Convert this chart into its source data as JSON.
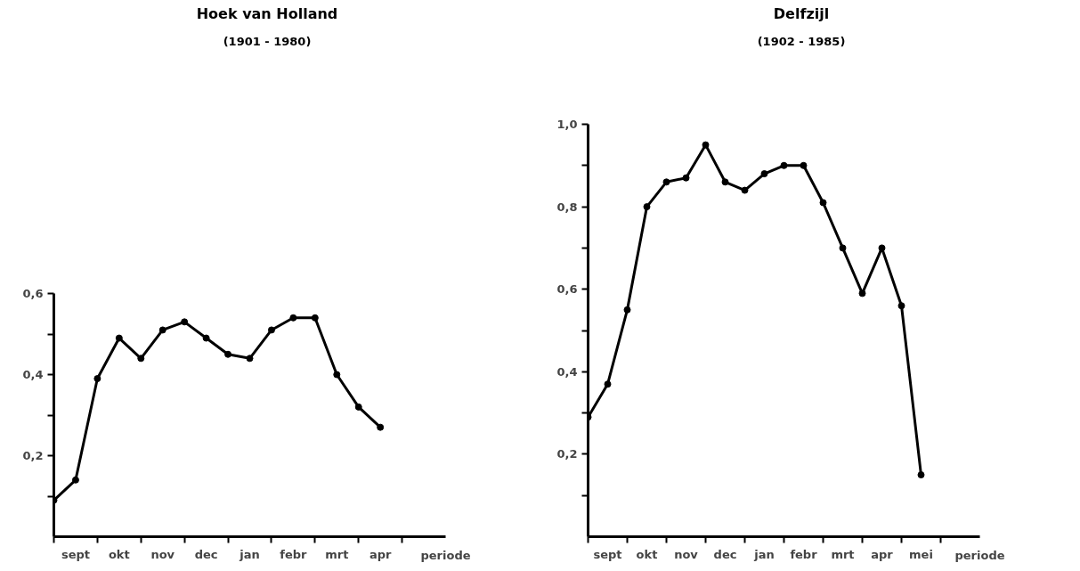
{
  "chart_data": [
    {
      "type": "line",
      "title": "Hoek van Holland",
      "subtitle": "(1901 - 1980)",
      "xlabel": "periode",
      "categories": [
        null,
        "sept",
        null,
        "okt",
        null,
        "nov",
        null,
        "dec",
        null,
        "jan",
        null,
        "febr",
        null,
        "mrt",
        null,
        "apr",
        null,
        null,
        null
      ],
      "series": [
        {
          "color": "#000000",
          "values": [
            0.09,
            0.14,
            0.39,
            0.49,
            0.44,
            0.51,
            0.53,
            0.49,
            0.45,
            0.44,
            0.51,
            0.54,
            0.54,
            0.4,
            0.32,
            0.27,
            null,
            null,
            null
          ]
        }
      ],
      "ylim": [
        0,
        0.6
      ],
      "yticks": [
        {
          "value": 0.1,
          "label": null
        },
        {
          "value": 0.2,
          "label": "0,2"
        },
        {
          "value": 0.3,
          "label": null
        },
        {
          "value": 0.4,
          "label": "0,4"
        },
        {
          "value": 0.5,
          "label": null
        },
        {
          "value": 0.6,
          "label": "0,6"
        }
      ],
      "grid": false,
      "marker": "circle",
      "line_style": "solid"
    },
    {
      "type": "line",
      "title": "Delfzijl",
      "subtitle": "(1902 - 1985)",
      "xlabel": "periode",
      "categories": [
        null,
        "sept",
        null,
        "okt",
        null,
        "nov",
        null,
        "dec",
        null,
        "jan",
        null,
        "febr",
        null,
        "mrt",
        null,
        "apr",
        null,
        "mei",
        null,
        null,
        null
      ],
      "series": [
        {
          "color": "#000000",
          "values": [
            0.29,
            0.37,
            0.55,
            0.8,
            0.86,
            0.87,
            0.95,
            0.86,
            0.84,
            0.88,
            0.9,
            0.9,
            0.81,
            0.7,
            0.59,
            0.7,
            0.56,
            0.15,
            null,
            null,
            null
          ]
        }
      ],
      "ylim": [
        0,
        1.0
      ],
      "yticks": [
        {
          "value": 0.1,
          "label": null
        },
        {
          "value": 0.2,
          "label": "0,2"
        },
        {
          "value": 0.3,
          "label": null
        },
        {
          "value": 0.4,
          "label": "0,4"
        },
        {
          "value": 0.5,
          "label": null
        },
        {
          "value": 0.6,
          "label": "0,6"
        },
        {
          "value": 0.7,
          "label": null
        },
        {
          "value": 0.8,
          "label": "0,8"
        },
        {
          "value": 0.9,
          "label": null
        },
        {
          "value": 1.0,
          "label": "1,0"
        }
      ],
      "grid": false,
      "marker": "circle",
      "line_style": "solid"
    }
  ]
}
